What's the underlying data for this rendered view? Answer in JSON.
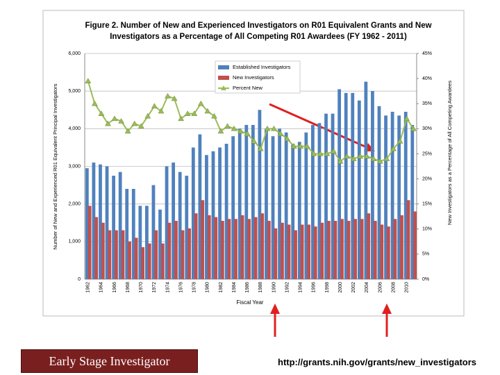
{
  "chart_data": {
    "type": "bar",
    "title": [
      "Figure 2.  Number of New and Experienced Investigators on R01 Equivalent Grants and New",
      "Investigators as a Percentage of All Competing R01 Awardees (FY 1962 - 2011)"
    ],
    "x_label": "Fiscal Year",
    "y_label": "Number of New and Experienced R01 Equivalent Principal Investigators",
    "y2_label": "New Investigators as a Percentage of All Competing Awardees",
    "categories": [
      "1962",
      null,
      "1964",
      null,
      "1966",
      null,
      "1968",
      null,
      "1970",
      null,
      "1972",
      null,
      "1974",
      null,
      "1976",
      null,
      "1978",
      null,
      "1980",
      null,
      "1982",
      null,
      "1984",
      null,
      "1986",
      null,
      "1988",
      null,
      "1990",
      null,
      "1992",
      null,
      "1994",
      null,
      "1996",
      null,
      "1998",
      null,
      "2000",
      null,
      "2002",
      null,
      "2004",
      null,
      "2006",
      null,
      "2008",
      null,
      "2010",
      null
    ],
    "series": [
      {
        "name": "Established Investigators",
        "color": "#4f81bd",
        "type": "bar",
        "values": [
          2950,
          3100,
          3050,
          3000,
          2750,
          2850,
          2400,
          2400,
          1950,
          1950,
          2500,
          1850,
          3000,
          3100,
          2850,
          2750,
          3500,
          3850,
          3300,
          3400,
          3500,
          3600,
          3800,
          4000,
          4100,
          4100,
          4500,
          4000,
          3800,
          4000,
          3900,
          3600,
          3650,
          3900,
          4100,
          4150,
          4400,
          4400,
          5050,
          4950,
          4950,
          4750,
          5250,
          5000,
          4600,
          4350,
          4450,
          4350,
          4450,
          4100
        ]
      },
      {
        "name": "New Investigators",
        "color": "#c0504d",
        "type": "bar",
        "values": [
          1950,
          1650,
          1500,
          1300,
          1300,
          1300,
          1000,
          1100,
          850,
          950,
          1300,
          950,
          1500,
          1550,
          1300,
          1350,
          1750,
          2100,
          1700,
          1650,
          1550,
          1600,
          1600,
          1700,
          1600,
          1650,
          1750,
          1550,
          1350,
          1500,
          1450,
          1300,
          1450,
          1450,
          1400,
          1500,
          1550,
          1550,
          1600,
          1550,
          1600,
          1600,
          1750,
          1550,
          1450,
          1400,
          1600,
          1700,
          2100,
          1800
        ]
      },
      {
        "name": "Percent New",
        "color": "#9bbb59",
        "type": "line",
        "axis": "y2",
        "values": [
          39.5,
          35,
          33,
          31,
          32,
          31.5,
          29.5,
          31,
          30.5,
          32.5,
          34.5,
          33.5,
          36.5,
          36,
          32,
          33,
          33,
          35,
          33.5,
          32.5,
          29.5,
          30.5,
          30,
          29.5,
          29,
          27.5,
          26,
          30,
          30,
          29,
          28,
          26.5,
          26.5,
          26.5,
          25,
          25,
          25,
          25.5,
          23.5,
          24.5,
          24,
          24.5,
          24.5,
          24,
          23.5,
          24,
          26,
          27.5,
          32,
          30
        ]
      }
    ],
    "ylim": [
      0,
      6000
    ],
    "yticks": [
      0,
      {
        "value": 1000,
        "label": "1,000"
      },
      {
        "value": 2000,
        "label": "2,000"
      },
      {
        "value": 3000,
        "label": "3,000"
      },
      {
        "value": 4000,
        "label": "4,000"
      },
      {
        "value": 5000,
        "label": "5,000"
      },
      {
        "value": 6000,
        "label": "6,000"
      }
    ],
    "y2lim": [
      0,
      45
    ],
    "y2ticks": [
      {
        "value": 0,
        "label": "0%"
      },
      {
        "value": 5,
        "label": "5%"
      },
      {
        "value": 10,
        "label": "10%"
      },
      {
        "value": 15,
        "label": "15%"
      },
      {
        "value": 20,
        "label": "20%"
      },
      {
        "value": 25,
        "label": "25%"
      },
      {
        "value": 30,
        "label": "30%"
      },
      {
        "value": 35,
        "label": "35%"
      },
      {
        "value": 40,
        "label": "40%"
      },
      {
        "value": 45,
        "label": "45%"
      }
    ],
    "grid": true,
    "legend": "top"
  },
  "footer": {
    "label": "Early Stage Investigator",
    "url": "http://grants.nih.gov/grants/new_investigators"
  }
}
